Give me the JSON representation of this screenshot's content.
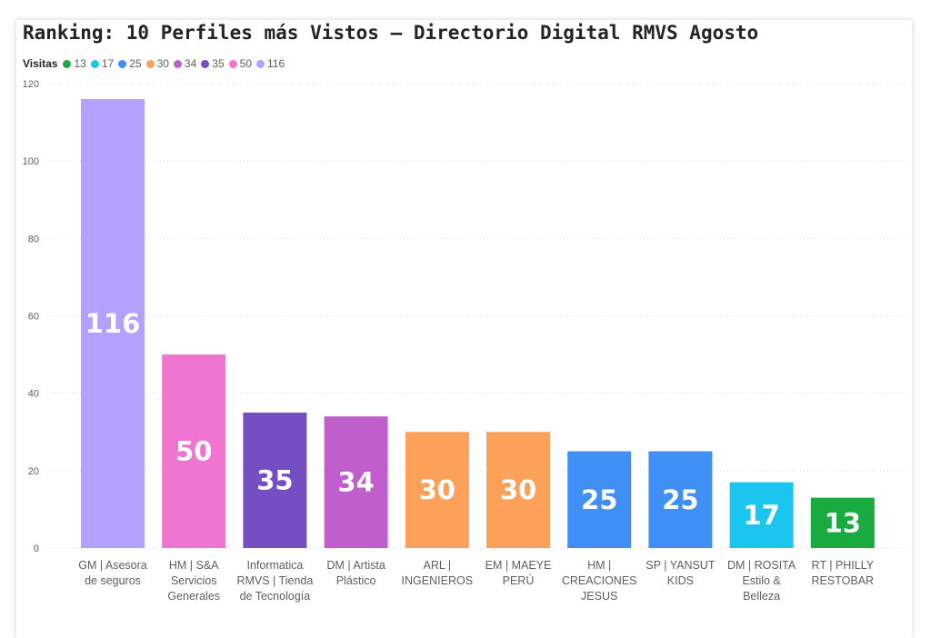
{
  "chart_data": {
    "type": "bar",
    "title": "Ranking: 10 Perfiles más Vistos – Directorio Digital RMVS Agosto",
    "legend_title": "Visitas",
    "legend_placement": "top-left",
    "legend": [
      {
        "label": "13",
        "color": "#1aab40"
      },
      {
        "label": "17",
        "color": "#1ac6f0"
      },
      {
        "label": "25",
        "color": "#3f8ff5"
      },
      {
        "label": "30",
        "color": "#fda05a"
      },
      {
        "label": "34",
        "color": "#c05fcc"
      },
      {
        "label": "35",
        "color": "#744ec2"
      },
      {
        "label": "50",
        "color": "#f075d0"
      },
      {
        "label": "116",
        "color": "#b3a0ff"
      }
    ],
    "categories": [
      "GM | Asesora de seguros",
      "HM | S&A Servicios Generales",
      "Informatica RMVS | Tienda de Tecnología",
      "DM | Artista Plástico",
      "ARL | INGENIEROS",
      "EM | MAEYE PERÚ",
      "HM | CREACIONES JESUS",
      "SP | YANSUT KIDS",
      "DM | ROSITA Estilo & Belleza",
      "RT | PHILLY RESTOBAR"
    ],
    "values": [
      116,
      50,
      35,
      34,
      30,
      30,
      25,
      25,
      17,
      13
    ],
    "ylim": [
      0,
      120
    ],
    "yticks": [
      0,
      20,
      40,
      60,
      80,
      100,
      120
    ],
    "grid": true,
    "xlabel": "",
    "ylabel": ""
  }
}
